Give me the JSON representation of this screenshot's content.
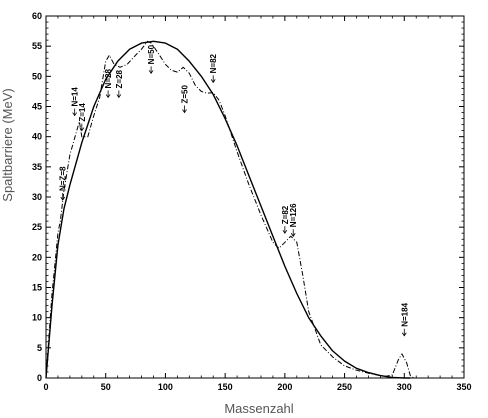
{
  "chart_data": {
    "type": "line",
    "xlabel": "Massenzahl",
    "ylabel": "Spaltbarriere (MeV)",
    "xlim": [
      0,
      350
    ],
    "ylim": [
      0,
      60
    ],
    "xticks": [
      "0",
      "50",
      "100",
      "150",
      "200",
      "250",
      "300",
      "350"
    ],
    "yticks": [
      "0",
      "5",
      "10",
      "15",
      "20",
      "25",
      "30",
      "35",
      "40",
      "45",
      "50",
      "55",
      "60"
    ],
    "grid": false,
    "legend": "none",
    "series": [
      {
        "style": "solid",
        "x": [
          0,
          5,
          10,
          15,
          20,
          30,
          40,
          50,
          60,
          70,
          80,
          90,
          100,
          110,
          120,
          130,
          140,
          150,
          160,
          170,
          180,
          190,
          200,
          210,
          220,
          230,
          240,
          250,
          260,
          270,
          280,
          290,
          300,
          305
        ],
        "y": [
          0,
          12,
          22,
          28,
          32,
          39,
          45,
          49.5,
          52.5,
          54.5,
          55.5,
          55.8,
          55.5,
          54.5,
          52.5,
          50,
          47,
          43,
          38.5,
          33.5,
          28.5,
          23.5,
          18.5,
          14,
          10,
          7,
          4.5,
          2.8,
          1.6,
          0.9,
          0.4,
          0.1,
          0,
          0
        ]
      },
      {
        "style": "dash-dot",
        "x": [
          0,
          5,
          8,
          10,
          12,
          15,
          20,
          25,
          28,
          30,
          35,
          40,
          45,
          50,
          53,
          57,
          62,
          68,
          75,
          80,
          85,
          88,
          90,
          95,
          100,
          105,
          110,
          115,
          120,
          125,
          130,
          135,
          140,
          145,
          150,
          160,
          170,
          180,
          190,
          195,
          200,
          205,
          210,
          215,
          220,
          230,
          240,
          250,
          260,
          270,
          280,
          285,
          290,
          295,
          298,
          302,
          305,
          308
        ],
        "y": [
          0,
          14,
          20,
          24,
          26,
          31,
          37,
          40.5,
          42.5,
          40,
          40,
          43.5,
          46.5,
          52.5,
          53.5,
          52,
          51.5,
          52,
          53.5,
          54.5,
          55.8,
          55.5,
          55,
          53.5,
          52,
          51,
          50.7,
          51.5,
          50.5,
          48.5,
          47.5,
          47.2,
          47.3,
          46,
          43.5,
          37.5,
          32,
          27,
          22.5,
          21.5,
          22.5,
          23.5,
          22.5,
          17,
          11,
          5.5,
          3.5,
          2,
          1.3,
          0.8,
          0.4,
          0.3,
          0.5,
          3,
          4,
          2.5,
          0.4,
          0
        ]
      }
    ],
    "annotations": [
      {
        "text": "N=Z=8",
        "x": 14,
        "y": 29.5
      },
      {
        "text": "N=14",
        "x": 24,
        "y": 43.5
      },
      {
        "text": "Z=14",
        "x": 30,
        "y": 41
      },
      {
        "text": "N=28",
        "x": 52,
        "y": 46.5
      },
      {
        "text": "Z=28",
        "x": 61,
        "y": 46.5
      },
      {
        "text": "N=50",
        "x": 88,
        "y": 50.5
      },
      {
        "text": "Z=50",
        "x": 116,
        "y": 44
      },
      {
        "text": "N=82",
        "x": 140,
        "y": 49
      },
      {
        "text": "Z=82",
        "x": 200,
        "y": 24
      },
      {
        "text": "N=126",
        "x": 207,
        "y": 23.5
      },
      {
        "text": "N=184",
        "x": 300,
        "y": 7
      }
    ]
  }
}
